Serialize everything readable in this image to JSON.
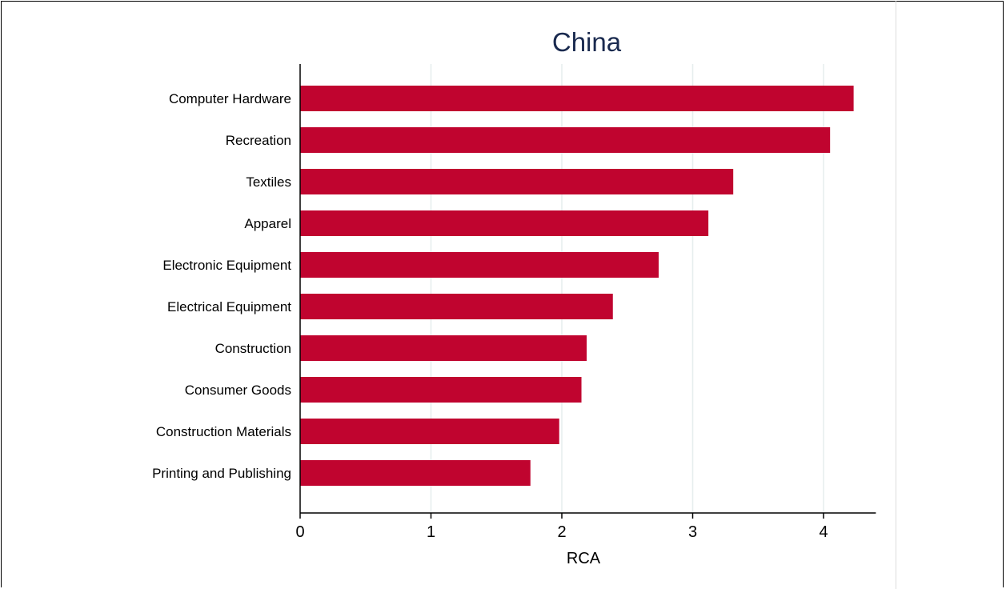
{
  "chart_data": {
    "type": "bar",
    "orientation": "horizontal",
    "title": "China",
    "xlabel": "RCA",
    "ylabel": "",
    "categories": [
      "Computer Hardware",
      "Recreation",
      "Textiles",
      "Apparel",
      "Electronic Equipment",
      "Electrical Equipment",
      "Construction",
      "Consumer Goods",
      "Construction Materials",
      "Printing and Publishing"
    ],
    "values": [
      4.23,
      4.05,
      3.31,
      3.12,
      2.74,
      2.39,
      2.19,
      2.15,
      1.98,
      1.76
    ],
    "xlim": [
      0,
      4.4
    ],
    "xticks": [
      0,
      1,
      2,
      3,
      4
    ],
    "grid": true,
    "bar_color": "#c0042f",
    "grid_color": "#e6eeee",
    "title_color": "#1a2a4f"
  }
}
